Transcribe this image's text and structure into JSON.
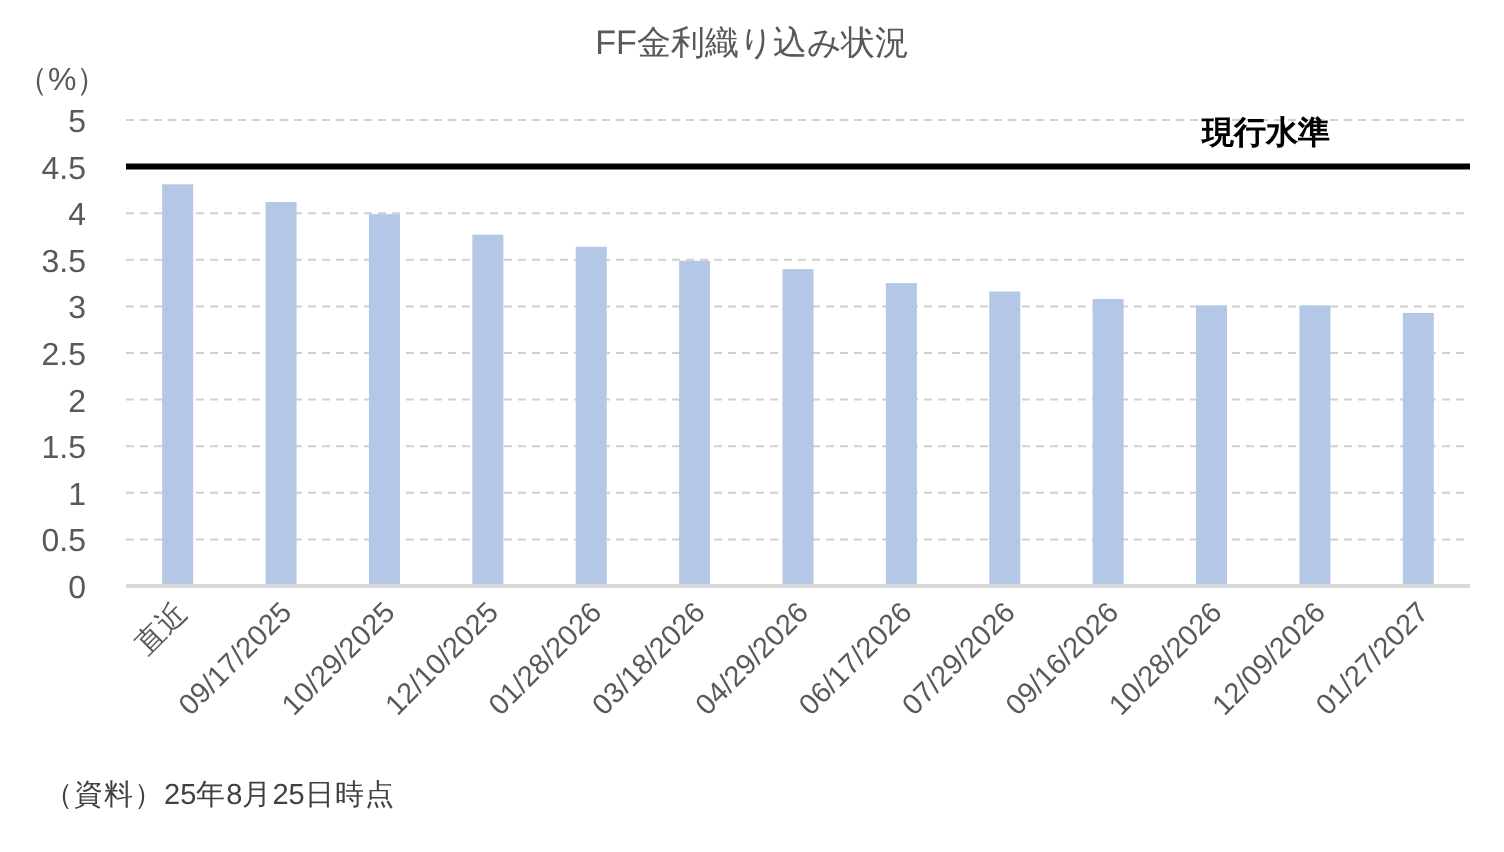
{
  "chart_data": {
    "type": "bar",
    "title": "FF金利織り込み状況",
    "ylabel": "（%）",
    "categories": [
      "直近",
      "09/17/2025",
      "10/29/2025",
      "12/10/2025",
      "01/28/2026",
      "03/18/2026",
      "04/29/2026",
      "06/17/2026",
      "07/29/2026",
      "09/16/2026",
      "10/28/2026",
      "12/09/2026",
      "01/27/2027"
    ],
    "values": [
      4.31,
      4.12,
      3.99,
      3.77,
      3.64,
      3.49,
      3.4,
      3.25,
      3.16,
      3.08,
      3.01,
      3.01,
      2.93
    ],
    "color": "#b4c7e7",
    "ylim": [
      0,
      5
    ],
    "yticks": [
      0,
      0.5,
      1,
      1.5,
      2,
      2.5,
      3,
      3.5,
      4,
      4.5,
      5
    ],
    "grid": "y",
    "ref_lines": [
      {
        "axis": "y",
        "value": 4.5,
        "label": "現行水準",
        "color": "#000000"
      }
    ],
    "annotations": [
      "（資料）25年8月25日時点"
    ]
  }
}
